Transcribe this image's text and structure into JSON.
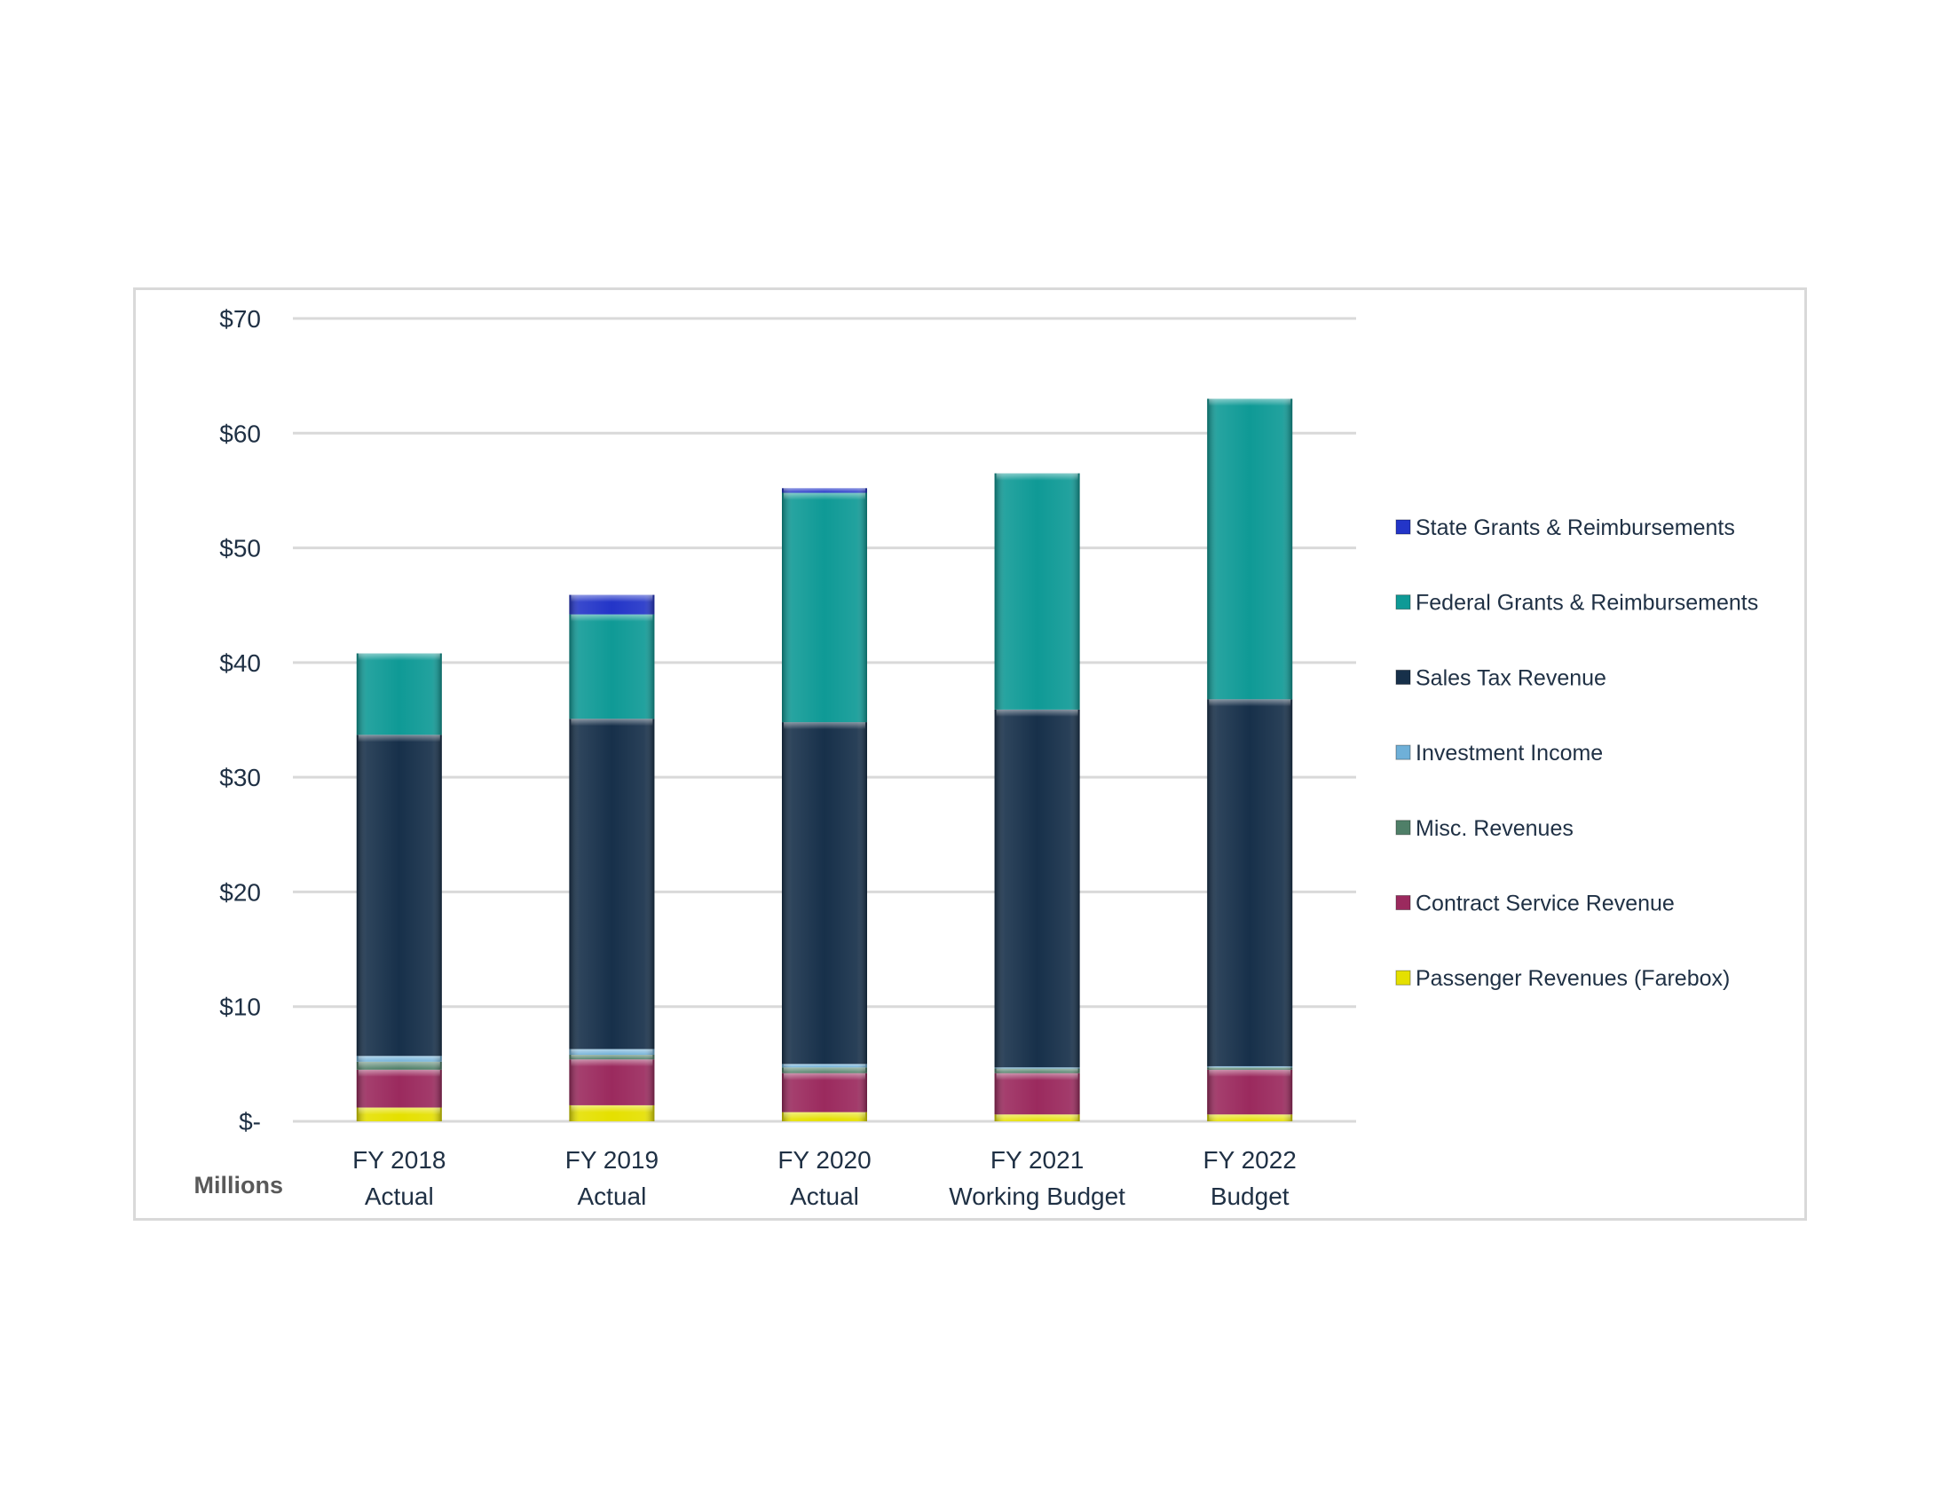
{
  "chart_data": {
    "type": "bar",
    "stacked": true,
    "unit_label": "Millions",
    "categories": [
      [
        "FY 2018",
        "Actual"
      ],
      [
        "FY 2019",
        "Actual"
      ],
      [
        "FY 2020",
        "Actual"
      ],
      [
        "FY 2021",
        "Working Budget"
      ],
      [
        "FY 2022",
        "Budget"
      ]
    ],
    "ylim": [
      0,
      70
    ],
    "yticks": [
      0,
      10,
      20,
      30,
      40,
      50,
      60,
      70
    ],
    "ytick_labels": [
      "$-",
      "$10",
      "$20",
      "$30",
      "$40",
      "$50",
      "$60",
      "$70"
    ],
    "grid": true,
    "legend_position": "right",
    "series": [
      {
        "name": "Passenger Revenues (Farebox)",
        "color": "#e5e000",
        "values": [
          1.2,
          1.4,
          0.8,
          0.6,
          0.6
        ]
      },
      {
        "name": "Contract Service Revenue",
        "color": "#9b2a5e",
        "values": [
          3.3,
          4.0,
          3.4,
          3.6,
          3.9
        ]
      },
      {
        "name": "Misc. Revenues",
        "color": "#4f7f68",
        "values": [
          0.7,
          0.4,
          0.5,
          0.4,
          0.2
        ]
      },
      {
        "name": "Investment Income",
        "color": "#6fb0d8",
        "values": [
          0.5,
          0.5,
          0.3,
          0.1,
          0.1
        ]
      },
      {
        "name": "Sales Tax Revenue",
        "color": "#17304a",
        "values": [
          28.0,
          28.8,
          29.8,
          31.2,
          32.0
        ]
      },
      {
        "name": "Federal Grants & Reimbursements",
        "color": "#0f9a96",
        "values": [
          7.1,
          9.1,
          20.0,
          20.6,
          26.2
        ]
      },
      {
        "name": "State Grants & Reimbursements",
        "color": "#2335c8",
        "values": [
          0.0,
          1.7,
          0.4,
          0.0,
          0.0
        ]
      }
    ],
    "legend_order": [
      "State Grants & Reimbursements",
      "Federal Grants & Reimbursements",
      "Sales Tax Revenue",
      "Investment Income",
      "Misc. Revenues",
      "Contract Service Revenue",
      "Passenger Revenues (Farebox)"
    ]
  }
}
